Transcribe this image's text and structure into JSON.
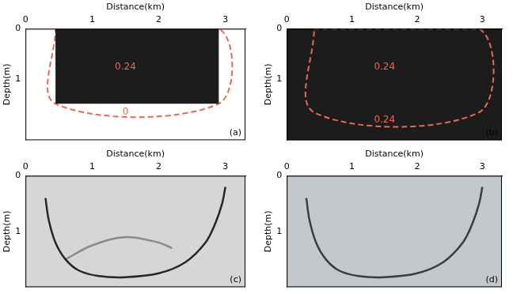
{
  "chart_data": [
    {
      "type": "image",
      "panel": "(a)",
      "x_label": "Distance(km)",
      "y_label": "Depth(m)",
      "xlim": [
        0,
        3.3
      ],
      "xticks": [
        0,
        1,
        2,
        3
      ],
      "ylim": [
        0,
        2.2
      ],
      "yticks": [
        0,
        1
      ],
      "background": "#ffffff",
      "series": [
        {
          "type": "area",
          "color": "#1c1c1c",
          "x": [
            0.45,
            2.9,
            2.9,
            0.45,
            0.45
          ],
          "y": [
            0,
            0,
            1.48,
            1.48,
            0
          ]
        },
        {
          "type": "line",
          "line_style": "dashed",
          "color": "#e8675a",
          "x": [
            0.45,
            2.9,
            2.9,
            0.45,
            0.45
          ],
          "y": [
            0,
            0,
            1.48,
            1.48,
            0
          ]
        }
      ],
      "annotations": [
        {
          "text": "0.24",
          "x": 1.5,
          "y": 0.75,
          "color": "#e8675a"
        },
        {
          "text": "0",
          "x": 1.5,
          "y": 1.65,
          "color": "#e8675a"
        }
      ]
    },
    {
      "type": "image",
      "panel": "(b)",
      "x_label": "Distance(km)",
      "y_label": "Depth(m)",
      "xlim": [
        0,
        3.3
      ],
      "xticks": [
        0,
        1,
        2,
        3
      ],
      "ylim": [
        0,
        2.2
      ],
      "yticks": [
        0,
        1
      ],
      "background": "#1c1c1c",
      "series": [
        {
          "type": "line",
          "line_style": "dashed",
          "color": "#e8675a",
          "x": [
            0.42,
            2.95,
            2.95,
            0.42,
            0.42
          ],
          "y": [
            0,
            0,
            1.65,
            1.65,
            0
          ]
        }
      ],
      "annotations": [
        {
          "text": "0.24",
          "x": 1.5,
          "y": 0.75,
          "color": "#e8675a"
        },
        {
          "text": "0.24",
          "x": 1.5,
          "y": 1.8,
          "color": "#e8675a"
        }
      ]
    },
    {
      "type": "image",
      "panel": "(c)",
      "x_label": "Distance(km)",
      "y_label": "Depth(m)",
      "xlim": [
        0,
        3.3
      ],
      "xticks": [
        0,
        1,
        2,
        3
      ],
      "ylim": [
        0,
        2.0
      ],
      "yticks": [
        0,
        1
      ],
      "background": "#d6d6d6",
      "series": [
        {
          "type": "line",
          "line_style": "solid",
          "color": "#262626",
          "x": [
            0.3,
            0.35,
            0.45,
            0.6,
            0.8,
            1.1,
            1.5,
            2.0,
            2.4,
            2.7,
            2.85,
            2.95,
            3.0
          ],
          "y": [
            0.4,
            0.8,
            1.2,
            1.5,
            1.7,
            1.8,
            1.82,
            1.75,
            1.55,
            1.2,
            0.85,
            0.5,
            0.2
          ]
        },
        {
          "type": "line",
          "line_style": "solid",
          "color": "#8a8a8a",
          "x": [
            0.6,
            1.0,
            1.5,
            2.0,
            2.2
          ],
          "y": [
            1.5,
            1.25,
            1.1,
            1.2,
            1.3
          ]
        }
      ],
      "annotations": []
    },
    {
      "type": "image",
      "panel": "(d)",
      "x_label": "Distance(km)",
      "y_label": "Depth(m)",
      "xlim": [
        0,
        3.3
      ],
      "xticks": [
        0,
        1,
        2,
        3
      ],
      "ylim": [
        0,
        2.0
      ],
      "yticks": [
        0,
        1
      ],
      "background": "#c3c8cd",
      "series": [
        {
          "type": "line",
          "line_style": "solid",
          "color": "#3a3d40",
          "x": [
            0.3,
            0.35,
            0.45,
            0.6,
            0.8,
            1.1,
            1.5,
            2.0,
            2.4,
            2.7,
            2.85,
            2.95,
            3.0
          ],
          "y": [
            0.4,
            0.8,
            1.2,
            1.5,
            1.7,
            1.8,
            1.82,
            1.75,
            1.55,
            1.2,
            0.85,
            0.5,
            0.2
          ]
        }
      ],
      "annotations": []
    }
  ]
}
